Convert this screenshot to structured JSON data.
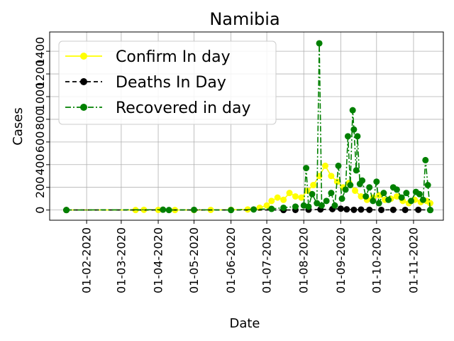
{
  "chart_data": {
    "type": "line",
    "title": "Namibia",
    "xlabel": "Date",
    "ylabel": "Cases",
    "x_tick_labels": [
      "01-02-2020",
      "01-03-2020",
      "01-04-2020",
      "01-05-2020",
      "01-06-2020",
      "01-07-2020",
      "01-08-2020",
      "01-09-2020",
      "01-10-2020",
      "01-11-2020"
    ],
    "y_ticks": [
      0,
      200,
      400,
      600,
      800,
      1000,
      1200,
      1400
    ],
    "ylim": [
      -90,
      1570
    ],
    "xlim": [
      "2020-01-01",
      "2020-11-26"
    ],
    "grid": true,
    "legend_position": "top-left",
    "series": [
      {
        "name": "Confirm In day",
        "color": "#ffff00",
        "linestyle": "solid",
        "points": [
          [
            "2020-01-15",
            0
          ],
          [
            "2020-03-13",
            0
          ],
          [
            "2020-03-20",
            2
          ],
          [
            "2020-04-01",
            1
          ],
          [
            "2020-04-15",
            0
          ],
          [
            "2020-05-01",
            0
          ],
          [
            "2020-05-15",
            1
          ],
          [
            "2020-06-01",
            2
          ],
          [
            "2020-06-15",
            5
          ],
          [
            "2020-06-25",
            20
          ],
          [
            "2020-07-01",
            40
          ],
          [
            "2020-07-05",
            80
          ],
          [
            "2020-07-10",
            110
          ],
          [
            "2020-07-15",
            90
          ],
          [
            "2020-07-20",
            150
          ],
          [
            "2020-07-25",
            120
          ],
          [
            "2020-07-30",
            110
          ],
          [
            "2020-08-04",
            170
          ],
          [
            "2020-08-09",
            220
          ],
          [
            "2020-08-14",
            300
          ],
          [
            "2020-08-19",
            390
          ],
          [
            "2020-08-24",
            300
          ],
          [
            "2020-08-29",
            250
          ],
          [
            "2020-09-03",
            200
          ],
          [
            "2020-09-08",
            240
          ],
          [
            "2020-09-13",
            170
          ],
          [
            "2020-09-18",
            120
          ],
          [
            "2020-09-23",
            90
          ],
          [
            "2020-09-28",
            110
          ],
          [
            "2020-10-03",
            130
          ],
          [
            "2020-10-08",
            90
          ],
          [
            "2020-10-13",
            100
          ],
          [
            "2020-10-18",
            120
          ],
          [
            "2020-10-23",
            80
          ],
          [
            "2020-10-28",
            60
          ],
          [
            "2020-11-02",
            90
          ],
          [
            "2020-11-07",
            70
          ],
          [
            "2020-11-12",
            80
          ],
          [
            "2020-11-15",
            60
          ]
        ]
      },
      {
        "name": "Deaths In Day",
        "color": "#000000",
        "linestyle": "dashed",
        "points": [
          [
            "2020-01-15",
            0
          ],
          [
            "2020-07-15",
            0
          ],
          [
            "2020-07-25",
            1
          ],
          [
            "2020-08-05",
            3
          ],
          [
            "2020-08-15",
            5
          ],
          [
            "2020-08-25",
            8
          ],
          [
            "2020-09-01",
            12
          ],
          [
            "2020-09-06",
            6
          ],
          [
            "2020-09-12",
            2
          ],
          [
            "2020-09-18",
            4
          ],
          [
            "2020-09-25",
            2
          ],
          [
            "2020-10-05",
            1
          ],
          [
            "2020-10-15",
            2
          ],
          [
            "2020-10-25",
            1
          ],
          [
            "2020-11-05",
            2
          ],
          [
            "2020-11-15",
            0
          ]
        ]
      },
      {
        "name": "Recovered in day",
        "color": "#008000",
        "linestyle": "dashdot",
        "points": [
          [
            "2020-01-15",
            0
          ],
          [
            "2020-04-05",
            3
          ],
          [
            "2020-04-10",
            0
          ],
          [
            "2020-05-01",
            2
          ],
          [
            "2020-06-01",
            0
          ],
          [
            "2020-06-20",
            5
          ],
          [
            "2020-07-05",
            10
          ],
          [
            "2020-07-15",
            20
          ],
          [
            "2020-07-25",
            30
          ],
          [
            "2020-08-01",
            40
          ],
          [
            "2020-08-03",
            370
          ],
          [
            "2020-08-05",
            30
          ],
          [
            "2020-08-08",
            140
          ],
          [
            "2020-08-12",
            60
          ],
          [
            "2020-08-14",
            1470
          ],
          [
            "2020-08-16",
            40
          ],
          [
            "2020-08-20",
            80
          ],
          [
            "2020-08-24",
            150
          ],
          [
            "2020-08-27",
            40
          ],
          [
            "2020-08-30",
            390
          ],
          [
            "2020-09-02",
            100
          ],
          [
            "2020-09-05",
            180
          ],
          [
            "2020-09-07",
            650
          ],
          [
            "2020-09-09",
            220
          ],
          [
            "2020-09-11",
            880
          ],
          [
            "2020-09-12",
            710
          ],
          [
            "2020-09-14",
            350
          ],
          [
            "2020-09-15",
            650
          ],
          [
            "2020-09-17",
            230
          ],
          [
            "2020-09-19",
            260
          ],
          [
            "2020-09-22",
            120
          ],
          [
            "2020-09-25",
            200
          ],
          [
            "2020-09-28",
            80
          ],
          [
            "2020-10-01",
            250
          ],
          [
            "2020-10-03",
            60
          ],
          [
            "2020-10-07",
            150
          ],
          [
            "2020-10-11",
            90
          ],
          [
            "2020-10-15",
            200
          ],
          [
            "2020-10-18",
            180
          ],
          [
            "2020-10-22",
            110
          ],
          [
            "2020-10-26",
            150
          ],
          [
            "2020-10-30",
            80
          ],
          [
            "2020-11-03",
            160
          ],
          [
            "2020-11-06",
            140
          ],
          [
            "2020-11-09",
            90
          ],
          [
            "2020-11-11",
            440
          ],
          [
            "2020-11-13",
            220
          ],
          [
            "2020-11-15",
            0
          ]
        ]
      }
    ]
  }
}
